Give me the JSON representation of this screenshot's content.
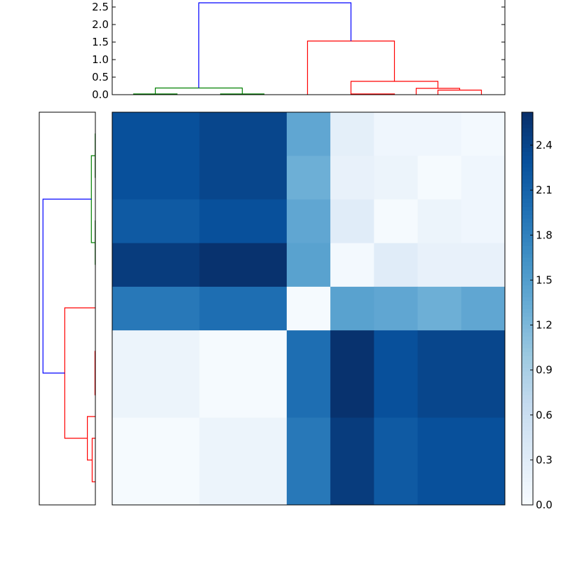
{
  "chart_data": [
    {
      "type": "dendrogram",
      "orientation": "top",
      "ylim": [
        0,
        2.7
      ],
      "ticks": [
        0.0,
        0.5,
        1.0,
        1.5,
        2.0,
        2.5
      ],
      "tick_labels": [
        "0.0",
        "0.5",
        "1.0",
        "1.5",
        "2.0",
        "2.5"
      ],
      "leaf_count": 9,
      "merges": [
        {
          "a": 0,
          "b": 1,
          "height": 0.02,
          "color": "#008000"
        },
        {
          "a": 2,
          "b": 3,
          "height": 0.02,
          "color": "#008000"
        },
        {
          "a": 5,
          "b": 6,
          "height": 0.02,
          "color": "#ff0000"
        },
        {
          "a": 7,
          "b": 8,
          "height": 0.13,
          "color": "#ff0000"
        },
        {
          "a": 6.5,
          "b": 7.5,
          "height": 0.18,
          "color": "#ff0000"
        },
        {
          "a": 0.5,
          "b": 2.5,
          "height": 0.19,
          "color": "#008000"
        },
        {
          "a": 5.0,
          "b": 7.0,
          "height": 0.38,
          "color": "#ff0000"
        },
        {
          "a": 4.0,
          "b": 6.0,
          "height": 1.53,
          "color": "#ff0000"
        },
        {
          "a": 1.5,
          "b": 5.0,
          "height": 2.62,
          "color": "#0000ff"
        }
      ]
    },
    {
      "type": "dendrogram",
      "orientation": "left",
      "xlim": [
        0,
        2.7
      ],
      "leaf_count": 9,
      "merges": [
        {
          "a": 0,
          "b": 1,
          "height": 0.01,
          "color": "#008000"
        },
        {
          "a": 2,
          "b": 3,
          "height": 0.01,
          "color": "#008000"
        },
        {
          "a": 0.5,
          "b": 2.5,
          "height": 0.2,
          "color": "#008000"
        },
        {
          "a": 5,
          "b": 6,
          "height": 0.02,
          "color": "#ff0000"
        },
        {
          "a": 7,
          "b": 8,
          "height": 0.16,
          "color": "#ff0000"
        },
        {
          "a": 6.5,
          "b": 7.5,
          "height": 0.4,
          "color": "#ff0000"
        },
        {
          "a": 4.0,
          "b": 7.0,
          "height": 1.53,
          "color": "#ff0000"
        },
        {
          "a": 1.5,
          "b": 5.5,
          "height": 2.62,
          "color": "#0000ff"
        }
      ]
    },
    {
      "type": "heatmap",
      "colormap": "Blues",
      "vmin": 0.0,
      "vmax": 2.62,
      "colorbar_ticks": [
        0.0,
        0.3,
        0.6,
        0.9,
        1.2,
        1.5,
        1.8,
        2.1,
        2.4
      ],
      "colorbar_labels": [
        "0.0",
        "0.3",
        "0.6",
        "0.9",
        "1.2",
        "1.5",
        "1.8",
        "2.1",
        "2.4"
      ],
      "col_blocks": [
        2,
        2,
        1,
        1,
        1,
        1,
        1
      ],
      "row_blocks": [
        1,
        1,
        1,
        1,
        1,
        2,
        2
      ],
      "values": [
        [
          2.3,
          2.4,
          1.4,
          0.25,
          0.1,
          0.1,
          0.05
        ],
        [
          2.3,
          2.4,
          1.3,
          0.2,
          0.15,
          0.03,
          0.1
        ],
        [
          2.2,
          2.3,
          1.4,
          0.3,
          0.03,
          0.15,
          0.1
        ],
        [
          2.5,
          2.6,
          1.45,
          0.05,
          0.3,
          0.2,
          0.2
        ],
        [
          1.9,
          2.0,
          0.03,
          1.45,
          1.4,
          1.3,
          1.4
        ],
        [
          0.15,
          0.03,
          2.0,
          2.6,
          2.3,
          2.4,
          2.4
        ],
        [
          0.03,
          0.15,
          1.9,
          2.5,
          2.2,
          2.3,
          2.3
        ]
      ]
    }
  ]
}
